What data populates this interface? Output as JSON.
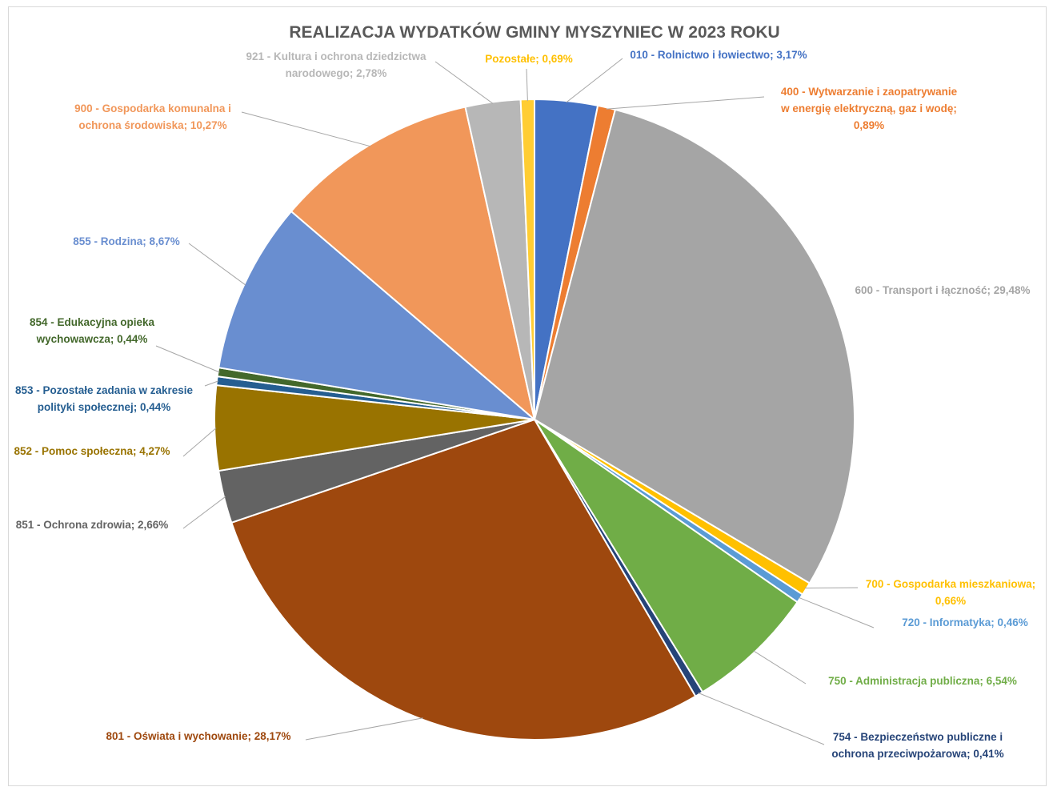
{
  "chart_data": {
    "type": "pie",
    "title": "REALIZACJA WYDATKÓW GMINY MYSZYNIEC W 2023 ROKU",
    "slices": [
      {
        "label_lines": [
          "010 - Rolnictwo i łowiectwo; 3,17%"
        ],
        "value": 3.17,
        "color": "#4472c4",
        "label_color": "#4472c4"
      },
      {
        "label_lines": [
          "400 - Wytwarzanie i zaopatrywanie",
          "w energię elektryczną, gaz i wodę;",
          "0,89%"
        ],
        "value": 0.89,
        "color": "#ed7d31",
        "label_color": "#ed7d31"
      },
      {
        "label_lines": [
          "600 - Transport i łączność; 29,48%"
        ],
        "value": 29.48,
        "color": "#a5a5a5",
        "label_color": "#a5a5a5"
      },
      {
        "label_lines": [
          "700 - Gospodarka mieszkaniowa;",
          "0,66%"
        ],
        "value": 0.66,
        "color": "#ffc000",
        "label_color": "#ffc000"
      },
      {
        "label_lines": [
          "720 - Informatyka; 0,46%"
        ],
        "value": 0.46,
        "color": "#5b9bd5",
        "label_color": "#5b9bd5"
      },
      {
        "label_lines": [
          "750 - Administracja publiczna; 6,54%"
        ],
        "value": 6.54,
        "color": "#70ad47",
        "label_color": "#70ad47"
      },
      {
        "label_lines": [
          "754 - Bezpieczeństwo publiczne i",
          "ochrona przeciwpożarowa; 0,41%"
        ],
        "value": 0.41,
        "color": "#264478",
        "label_color": "#264478"
      },
      {
        "label_lines": [
          "801 - Oświata i wychowanie; 28,17%"
        ],
        "value": 28.17,
        "color": "#9e480e",
        "label_color": "#9e480e"
      },
      {
        "label_lines": [
          "851 - Ochrona zdrowia; 2,66%"
        ],
        "value": 2.66,
        "color": "#636363",
        "label_color": "#636363"
      },
      {
        "label_lines": [
          "852 - Pomoc społeczna; 4,27%"
        ],
        "value": 4.27,
        "color": "#997300",
        "label_color": "#997300"
      },
      {
        "label_lines": [
          "853 - Pozostałe zadania w zakresie",
          "polityki społecznej; 0,44%"
        ],
        "value": 0.44,
        "color": "#255e91",
        "label_color": "#255e91"
      },
      {
        "label_lines": [
          "854 - Edukacyjna opieka",
          "wychowawcza; 0,44%"
        ],
        "value": 0.44,
        "color": "#43682b",
        "label_color": "#43682b"
      },
      {
        "label_lines": [
          "855 - Rodzina; 8,67%"
        ],
        "value": 8.67,
        "color": "#698ed0",
        "label_color": "#698ed0"
      },
      {
        "label_lines": [
          "900 - Gospodarka komunalna i",
          "ochrona środowiska; 10,27%"
        ],
        "value": 10.27,
        "color": "#f1975a",
        "label_color": "#f1975a"
      },
      {
        "label_lines": [
          "921 - Kultura i ochrona dziedzictwa",
          "narodowego; 2,78%"
        ],
        "value": 2.78,
        "color": "#b7b7b7",
        "label_color": "#b7b7b7"
      },
      {
        "label_lines": [
          "Pozostałe; 0,69%"
        ],
        "value": 0.69,
        "color": "#ffcd33",
        "label_color": "#ffc000"
      }
    ]
  }
}
